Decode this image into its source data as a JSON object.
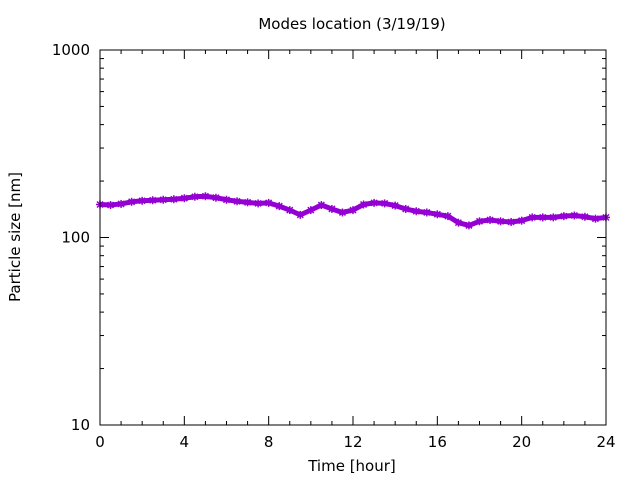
{
  "chart_data": {
    "type": "line",
    "title": "Modes location (3/19/19)",
    "xlabel": "Time [hour]",
    "ylabel": "Particle size [nm]",
    "xlim": [
      0,
      24
    ],
    "ylim": [
      10,
      1000
    ],
    "yscale": "log",
    "grid": false,
    "x_ticks": [
      0,
      4,
      8,
      12,
      16,
      20,
      24
    ],
    "x_tick_labels": [
      "0",
      "4",
      "8",
      "12",
      "16",
      "20",
      "24"
    ],
    "y_ticks": [
      10,
      100,
      1000
    ],
    "y_tick_labels": [
      "10",
      "100",
      "1000"
    ],
    "series": [
      {
        "color": "#9400d3",
        "marker": "star",
        "x": [
          0,
          0.5,
          1,
          1.5,
          2,
          2.5,
          3,
          3.5,
          4,
          4.5,
          5,
          5.5,
          6,
          6.5,
          7,
          7.5,
          8,
          8.5,
          9,
          9.5,
          10,
          10.5,
          11,
          11.5,
          12,
          12.5,
          13,
          13.5,
          14,
          14.5,
          15,
          15.5,
          16,
          16.5,
          17,
          17.5,
          18,
          18.5,
          19,
          19.5,
          20,
          20.5,
          21,
          21.5,
          22,
          22.5,
          23,
          23.5,
          24
        ],
        "values": [
          150,
          149,
          151,
          155,
          157,
          158,
          159,
          160,
          162,
          165,
          166,
          163,
          159,
          156,
          154,
          152,
          153,
          147,
          140,
          132,
          140,
          149,
          142,
          136,
          140,
          150,
          153,
          152,
          148,
          142,
          138,
          136,
          133,
          130,
          120,
          116,
          122,
          124,
          122,
          121,
          123,
          128,
          128,
          128,
          130,
          131,
          129,
          126,
          128
        ]
      }
    ]
  }
}
